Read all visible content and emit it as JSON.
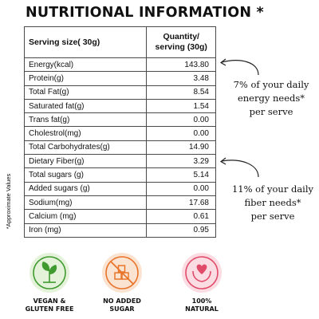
{
  "title": "NUTRITIONAL INFORMATION *",
  "table": {
    "header": {
      "serving_size": "Serving size( 30g)",
      "quantity_line1": "Quantity/",
      "quantity_line2": "serving (30g)"
    },
    "rows": [
      {
        "label": "Energy(kcal)",
        "value": "143.80"
      },
      {
        "label": "Protein(g)",
        "value": "3.48"
      },
      {
        "label": "Total Fat(g)",
        "value": "8.54"
      },
      {
        "label": "Saturated fat(g)",
        "value": "1.54"
      },
      {
        "label": "Trans fat(g)",
        "value": "0.00"
      },
      {
        "label": "Cholestrol(mg)",
        "value": "0.00"
      },
      {
        "label": "Total Carbohydrates(g)",
        "value": "14.90"
      },
      {
        "label": "Dietary  Fiber(g)",
        "value": "3.29"
      },
      {
        "label": "Total sugars (g)",
        "value": "5.14"
      },
      {
        "label": "Added sugars (g)",
        "value": "0.00"
      },
      {
        "label": "Sodium(mg)",
        "value": "17.68"
      },
      {
        "label": "Calcium (mg)",
        "value": "0.61"
      },
      {
        "label": "Iron (mg)",
        "value": "0.95"
      }
    ]
  },
  "side_note": "*Approximate Values",
  "notes": {
    "energy": {
      "line1": "7% of your daily",
      "line2": "energy needs*",
      "line3": "per serve"
    },
    "fiber": {
      "line1": "11% of your daily",
      "line2": "fiber needs*",
      "line3": "per serve"
    }
  },
  "badges": [
    {
      "icon": "vegan-leaf-icon",
      "color": "#3f9a2f",
      "bg": "#e4f2da",
      "line1": "VEGAN &",
      "line2": "GLUTEN FREE"
    },
    {
      "icon": "no-sugar-icon",
      "color": "#e8742a",
      "bg": "#fbe3d2",
      "line1": "NO ADDED",
      "line2": "SUGAR"
    },
    {
      "icon": "heart-hands-icon",
      "color": "#e14b6a",
      "bg": "#fbdce2",
      "line1": "100%",
      "line2": "NATURAL"
    }
  ]
}
